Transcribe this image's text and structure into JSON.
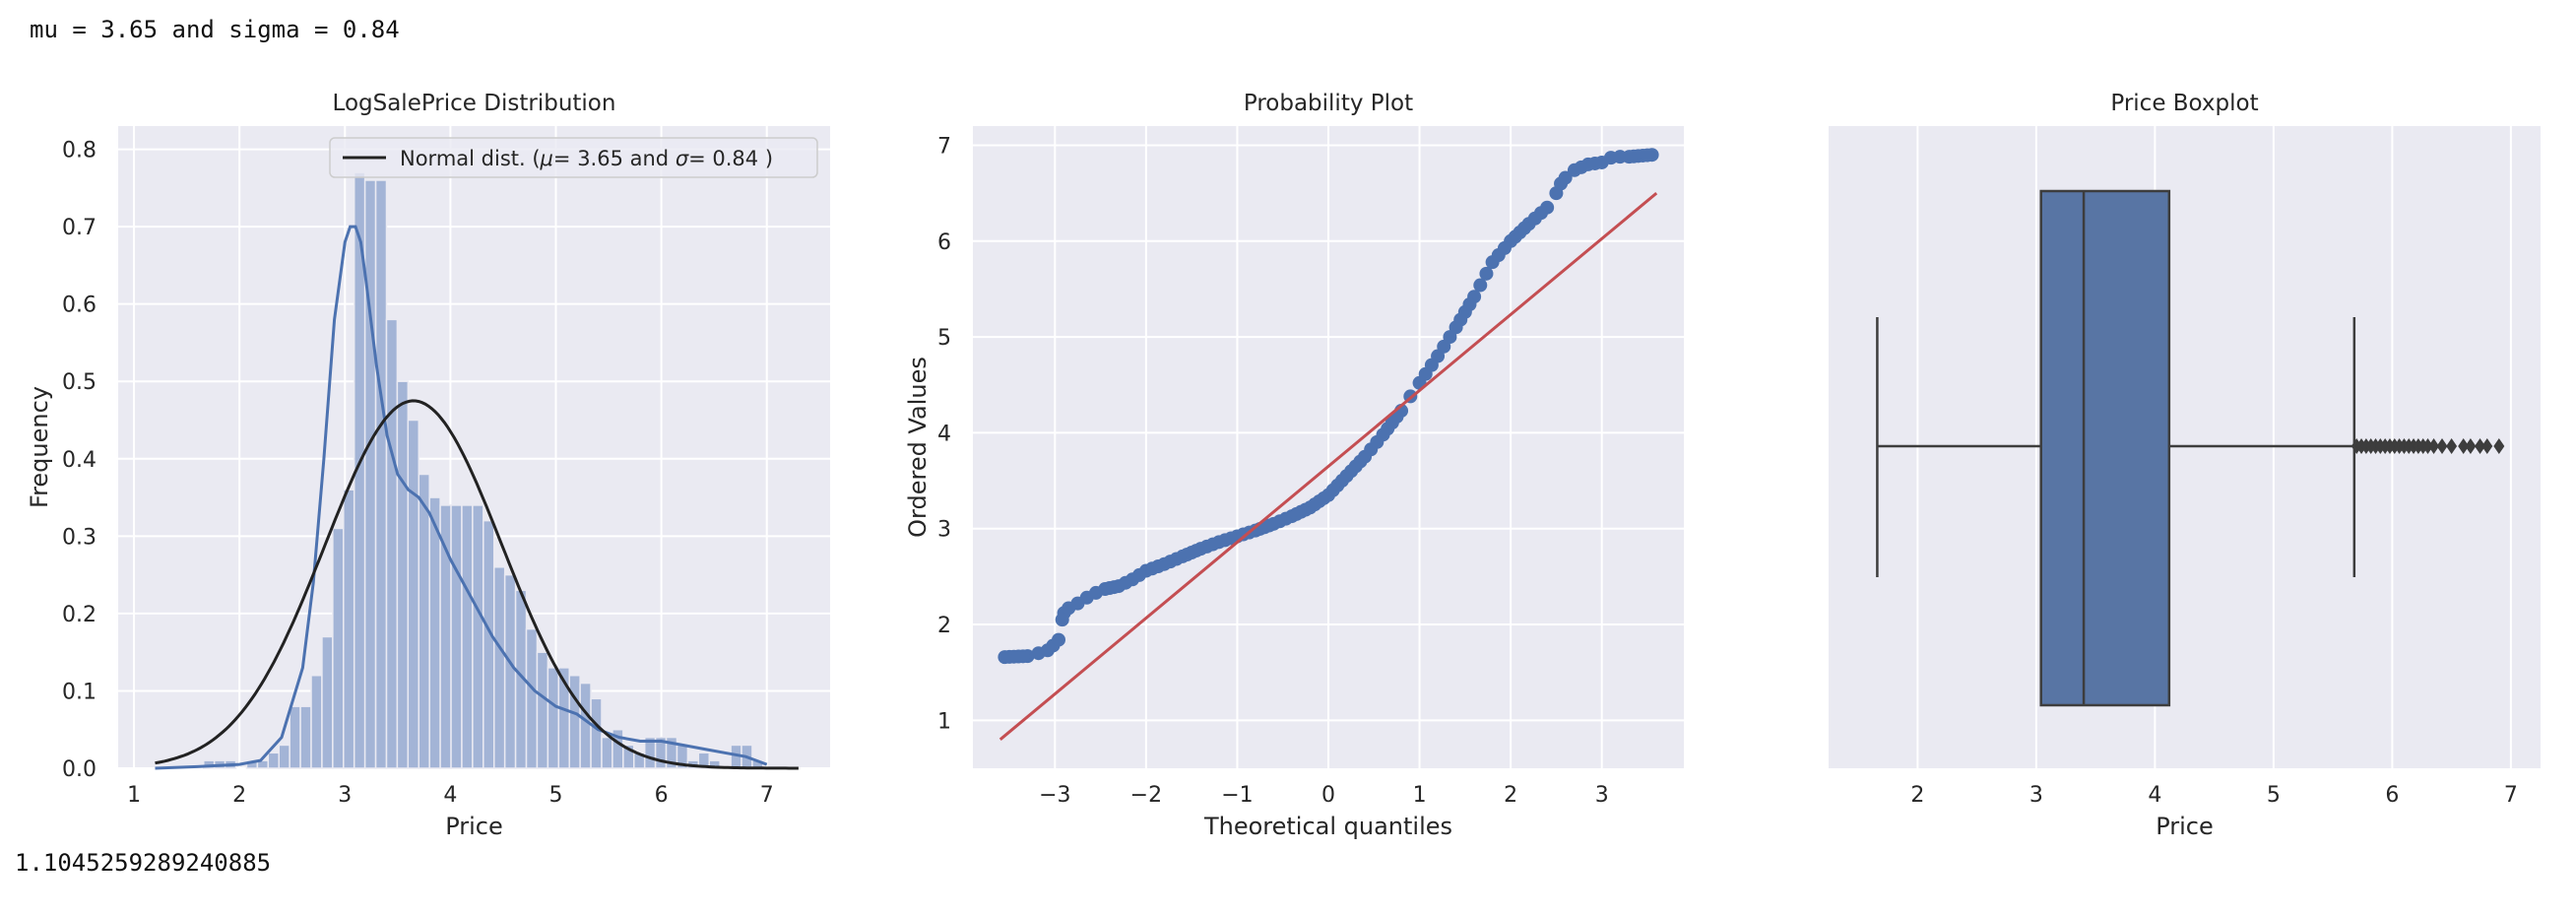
{
  "stdout": {
    "top_line": "mu = 3.65 and sigma = 0.84",
    "bottom_line": "1.1045259289240885"
  },
  "colors": {
    "panel_bg": "#EAEAF2",
    "grid": "#FFFFFF",
    "hist_fill": "#A3B4D6",
    "kde_line": "#4C72B0",
    "normal_line": "#222222",
    "qq_points": "#4C72B0",
    "qq_line": "#C44E52",
    "box_fill": "#5875A4",
    "box_edge": "#3D3D3D"
  },
  "chart_data": [
    {
      "type": "bar",
      "title": "LogSalePrice Distribution",
      "xlabel": "Price",
      "ylabel": "Frequency",
      "xlim": [
        0.85,
        7.6
      ],
      "ylim": [
        0,
        0.83
      ],
      "xticks": [
        1,
        2,
        3,
        4,
        5,
        6,
        7
      ],
      "yticks": [
        0.0,
        0.1,
        0.2,
        0.3,
        0.4,
        0.5,
        0.6,
        0.7,
        0.8
      ],
      "grid": true,
      "legend": {
        "placement": "top-right",
        "entries": [
          "Normal dist. ($\\mu=$ 3.65 and $\\sigma=$ 0.84 )"
        ],
        "display_prefix": "Normal dist. (",
        "mu_symbol": "μ",
        "mid_text": "=  3.65 and ",
        "sigma_symbol": "σ",
        "suffix_text": "=  0.84 )"
      },
      "histogram": {
        "bin_width": 0.102,
        "bin_starts": [
          1.66,
          1.762,
          1.864,
          1.966,
          2.068,
          2.17,
          2.272,
          2.374,
          2.476,
          2.578,
          2.68,
          2.782,
          2.884,
          2.986,
          3.088,
          3.19,
          3.292,
          3.394,
          3.496,
          3.598,
          3.7,
          3.802,
          3.904,
          4.006,
          4.108,
          4.21,
          4.312,
          4.414,
          4.516,
          4.618,
          4.72,
          4.822,
          4.924,
          5.026,
          5.128,
          5.23,
          5.332,
          5.434,
          5.536,
          5.638,
          5.74,
          5.842,
          5.944,
          6.046,
          6.148,
          6.25,
          6.352,
          6.454,
          6.556,
          6.658,
          6.76,
          6.862
        ],
        "values": [
          0.01,
          0.01,
          0.01,
          0.0,
          0.01,
          0.01,
          0.02,
          0.03,
          0.08,
          0.08,
          0.12,
          0.17,
          0.31,
          0.36,
          0.77,
          0.76,
          0.76,
          0.58,
          0.5,
          0.45,
          0.38,
          0.35,
          0.34,
          0.34,
          0.34,
          0.34,
          0.32,
          0.26,
          0.25,
          0.23,
          0.18,
          0.15,
          0.13,
          0.13,
          0.12,
          0.11,
          0.09,
          0.04,
          0.05,
          0.03,
          0.02,
          0.04,
          0.04,
          0.04,
          0.03,
          0.01,
          0.02,
          0.01,
          0.0,
          0.03,
          0.03,
          0.01
        ]
      },
      "kde": {
        "x": [
          1.2,
          1.6,
          2.0,
          2.2,
          2.4,
          2.6,
          2.7,
          2.8,
          2.9,
          3.0,
          3.05,
          3.1,
          3.15,
          3.2,
          3.3,
          3.4,
          3.5,
          3.6,
          3.7,
          3.8,
          3.9,
          4.0,
          4.2,
          4.4,
          4.6,
          4.8,
          5.0,
          5.2,
          5.4,
          5.6,
          5.8,
          6.0,
          6.2,
          6.4,
          6.6,
          6.8,
          7.0
        ],
        "y": [
          0.0,
          0.002,
          0.005,
          0.01,
          0.04,
          0.13,
          0.24,
          0.4,
          0.58,
          0.68,
          0.7,
          0.7,
          0.68,
          0.63,
          0.52,
          0.43,
          0.38,
          0.36,
          0.35,
          0.33,
          0.3,
          0.27,
          0.22,
          0.17,
          0.13,
          0.1,
          0.08,
          0.07,
          0.05,
          0.04,
          0.035,
          0.035,
          0.03,
          0.025,
          0.02,
          0.015,
          0.005
        ]
      },
      "normal": {
        "mu": 3.65,
        "sigma": 0.84,
        "x_range": [
          1.2,
          7.3
        ]
      }
    },
    {
      "type": "scatter",
      "title": "Probability Plot",
      "xlabel": "Theoretical quantiles",
      "ylabel": "Ordered Values",
      "xlim": [
        -3.9,
        3.9
      ],
      "ylim": [
        0.5,
        7.2
      ],
      "xticks": [
        -3,
        -2,
        -1,
        0,
        1,
        2,
        3
      ],
      "yticks": [
        1,
        2,
        3,
        4,
        5,
        6,
        7
      ],
      "grid": true,
      "points": {
        "x": [
          -3.55,
          -3.3,
          -3.18,
          -3.08,
          -3.02,
          -2.96,
          -2.92,
          -2.9,
          -2.85,
          -2.75,
          -2.65,
          -2.55,
          -2.45,
          -2.3,
          -2.15,
          -2.0,
          -1.8,
          -1.6,
          -1.4,
          -1.2,
          -1.0,
          -0.8,
          -0.6,
          -0.4,
          -0.2,
          0.0,
          0.2,
          0.4,
          0.6,
          0.8,
          0.9,
          1.0,
          1.2,
          1.4,
          1.6,
          1.8,
          2.0,
          2.2,
          2.4,
          2.5,
          2.55,
          2.6,
          2.7,
          2.85,
          3.0,
          3.1,
          3.2,
          3.3,
          3.55
        ],
        "y": [
          1.66,
          1.67,
          1.7,
          1.73,
          1.78,
          1.84,
          2.05,
          2.12,
          2.17,
          2.22,
          2.28,
          2.33,
          2.37,
          2.4,
          2.47,
          2.56,
          2.63,
          2.71,
          2.79,
          2.86,
          2.92,
          2.98,
          3.05,
          3.13,
          3.22,
          3.35,
          3.55,
          3.75,
          3.98,
          4.23,
          4.38,
          4.52,
          4.8,
          5.1,
          5.42,
          5.78,
          6.0,
          6.18,
          6.35,
          6.5,
          6.6,
          6.66,
          6.74,
          6.8,
          6.82,
          6.87,
          6.88,
          6.88,
          6.9
        ]
      },
      "fit_line": {
        "x": [
          -3.6,
          3.6
        ],
        "y": [
          0.8,
          6.5
        ]
      }
    },
    {
      "type": "box",
      "title": "Price Boxplot",
      "xlabel": "Price",
      "xlim": [
        1.25,
        7.25
      ],
      "xticks": [
        2,
        3,
        4,
        5,
        6,
        7
      ],
      "grid": true,
      "stats": {
        "whisker_low": 1.66,
        "q1": 3.04,
        "median": 3.4,
        "q3": 4.12,
        "whisker_high": 5.68
      },
      "outliers": [
        5.7,
        5.74,
        5.78,
        5.82,
        5.86,
        5.9,
        5.94,
        5.98,
        6.02,
        6.06,
        6.1,
        6.14,
        6.18,
        6.22,
        6.26,
        6.3,
        6.35,
        6.42,
        6.5,
        6.6,
        6.66,
        6.74,
        6.8,
        6.9
      ]
    }
  ]
}
